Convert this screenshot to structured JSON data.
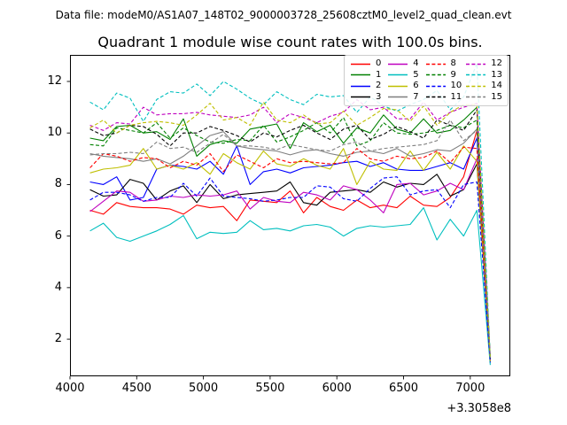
{
  "figure": {
    "header_text": "Data file: modeM0/AS1A07_148T02_9000003728_25608cztM0_level2_quad_clean.evt",
    "title": "Quadrant 1 module wise count rates with 100.0s bins."
  },
  "chart_data": {
    "type": "line",
    "title": "Quadrant 1 module wise count rates with 100.0s bins.",
    "xlabel": "",
    "ylabel": "",
    "grid": false,
    "legend": {
      "position": "upper right",
      "columns": 4
    },
    "x_axis": {
      "ticks": [
        4000,
        4500,
        5000,
        5500,
        6000,
        6500,
        7000
      ],
      "offset_label": "+3.3058e8",
      "lim": [
        4000,
        7300
      ]
    },
    "y_axis": {
      "ticks": [
        2,
        4,
        6,
        8,
        10,
        12
      ],
      "lim": [
        0.56,
        13.03
      ]
    },
    "x": [
      4150,
      4250,
      4350,
      4450,
      4550,
      4650,
      4750,
      4850,
      4950,
      5050,
      5150,
      5250,
      5350,
      5450,
      5550,
      5650,
      5750,
      5850,
      5950,
      6050,
      6150,
      6250,
      6350,
      6450,
      6550,
      6650,
      6750,
      6850,
      6950,
      7050,
      7150
    ],
    "series": [
      {
        "name": "0",
        "color": "#ff0000",
        "style": "solid",
        "values": [
          7.0,
          6.85,
          7.3,
          7.15,
          7.1,
          7.1,
          7.05,
          6.85,
          7.2,
          7.1,
          7.15,
          6.6,
          7.4,
          7.35,
          7.3,
          7.75,
          6.9,
          7.5,
          7.15,
          7.0,
          7.4,
          7.1,
          7.2,
          7.1,
          7.55,
          7.2,
          7.15,
          7.5,
          8.3,
          10.1,
          1.1
        ]
      },
      {
        "name": "1",
        "color": "#008000",
        "style": "solid",
        "values": [
          9.8,
          9.7,
          10.25,
          10.3,
          10.0,
          10.05,
          9.75,
          10.55,
          9.1,
          9.55,
          9.7,
          9.6,
          10.15,
          10.25,
          10.35,
          9.4,
          10.4,
          10.05,
          10.3,
          9.6,
          10.2,
          10.0,
          10.7,
          10.15,
          10.0,
          10.55,
          10.0,
          10.1,
          10.5,
          11.0,
          1.2
        ]
      },
      {
        "name": "2",
        "color": "#0000ff",
        "style": "solid",
        "values": [
          8.1,
          8.0,
          8.3,
          7.4,
          7.5,
          8.6,
          8.75,
          8.7,
          8.6,
          8.9,
          8.4,
          9.5,
          8.0,
          8.5,
          8.6,
          8.45,
          8.65,
          8.7,
          8.75,
          8.85,
          8.9,
          8.7,
          8.85,
          8.6,
          8.55,
          8.55,
          8.7,
          8.85,
          8.6,
          9.8,
          1.15
        ]
      },
      {
        "name": "3",
        "color": "#000000",
        "style": "solid",
        "values": [
          7.8,
          7.55,
          7.6,
          8.2,
          8.05,
          7.4,
          7.75,
          7.95,
          7.3,
          8.0,
          7.45,
          7.6,
          7.65,
          7.7,
          7.75,
          8.1,
          7.3,
          7.2,
          7.7,
          7.75,
          7.8,
          7.7,
          8.1,
          7.9,
          8.05,
          8.0,
          8.4,
          7.55,
          7.8,
          8.8,
          1.1
        ]
      },
      {
        "name": "4",
        "color": "#bf00bf",
        "style": "solid",
        "values": [
          6.95,
          7.35,
          7.75,
          7.7,
          7.35,
          7.4,
          7.55,
          7.5,
          7.6,
          7.55,
          7.6,
          7.75,
          7.05,
          7.5,
          7.35,
          7.3,
          7.7,
          7.6,
          7.4,
          7.95,
          7.8,
          7.4,
          6.9,
          8.0,
          8.05,
          7.6,
          7.75,
          8.05,
          7.8,
          9.0,
          1.1
        ]
      },
      {
        "name": "5",
        "color": "#00bfbf",
        "style": "solid",
        "values": [
          6.2,
          6.5,
          5.95,
          5.8,
          6.0,
          6.2,
          6.45,
          6.8,
          5.9,
          6.15,
          6.1,
          6.15,
          6.6,
          6.25,
          6.3,
          6.2,
          6.4,
          6.45,
          6.35,
          6.0,
          6.3,
          6.4,
          6.35,
          6.4,
          6.45,
          7.1,
          5.85,
          6.65,
          6.0,
          7.0,
          1.0
        ]
      },
      {
        "name": "6",
        "color": "#bfbf00",
        "style": "solid",
        "values": [
          8.45,
          8.6,
          8.65,
          8.75,
          9.4,
          8.6,
          8.75,
          8.6,
          8.85,
          8.4,
          9.2,
          8.85,
          8.6,
          9.3,
          8.8,
          8.7,
          9.0,
          8.75,
          8.6,
          9.4,
          8.0,
          8.9,
          8.6,
          8.55,
          9.3,
          8.55,
          9.25,
          8.6,
          9.5,
          8.9,
          1.15
        ]
      },
      {
        "name": "7",
        "color": "#7f7f7f",
        "style": "solid",
        "values": [
          9.2,
          9.1,
          9.05,
          9.0,
          8.9,
          9.0,
          8.8,
          9.1,
          9.5,
          9.9,
          10.05,
          9.5,
          9.4,
          9.35,
          9.3,
          9.15,
          9.3,
          9.35,
          9.2,
          9.1,
          9.25,
          9.3,
          9.2,
          9.4,
          9.1,
          9.2,
          9.35,
          9.3,
          9.6,
          10.15,
          1.2
        ]
      },
      {
        "name": "8",
        "color": "#ff0000",
        "style": "dashed",
        "values": [
          8.65,
          9.2,
          9.1,
          8.9,
          9.05,
          9.0,
          8.65,
          8.9,
          8.75,
          9.2,
          8.5,
          9.15,
          8.9,
          8.65,
          9.0,
          8.85,
          8.9,
          8.85,
          8.8,
          8.85,
          9.4,
          9.0,
          8.9,
          9.1,
          9.0,
          9.05,
          9.3,
          8.85,
          9.45,
          9.4,
          1.2
        ]
      },
      {
        "name": "9",
        "color": "#008000",
        "style": "dashed",
        "values": [
          9.55,
          9.5,
          10.2,
          10.1,
          10.0,
          10.4,
          9.8,
          10.2,
          9.9,
          9.65,
          9.6,
          9.75,
          9.7,
          10.3,
          9.65,
          9.85,
          10.1,
          10.4,
          10.0,
          10.6,
          9.5,
          9.7,
          10.4,
          10.0,
          9.95,
          10.0,
          10.1,
          10.3,
          10.2,
          10.5,
          1.25
        ]
      },
      {
        "name": "10",
        "color": "#0000ff",
        "style": "dashed",
        "values": [
          7.4,
          7.7,
          7.7,
          7.6,
          7.35,
          7.5,
          7.5,
          8.05,
          7.55,
          8.25,
          7.55,
          7.5,
          7.45,
          7.35,
          7.4,
          7.5,
          7.5,
          7.95,
          7.9,
          7.45,
          7.35,
          7.85,
          8.25,
          8.3,
          7.6,
          7.75,
          7.8,
          7.1,
          8.0,
          8.1,
          1.1
        ]
      },
      {
        "name": "11",
        "color": "#000000",
        "style": "dashed",
        "values": [
          10.15,
          9.9,
          10.0,
          10.3,
          10.25,
          9.95,
          9.5,
          10.0,
          10.0,
          10.25,
          10.1,
          9.9,
          9.65,
          10.0,
          9.85,
          10.1,
          10.3,
          10.0,
          9.75,
          10.15,
          10.3,
          9.75,
          9.95,
          10.25,
          10.05,
          9.8,
          10.5,
          10.3,
          10.1,
          10.9,
          1.25
        ]
      },
      {
        "name": "12",
        "color": "#bf00bf",
        "style": "dashed",
        "values": [
          10.3,
          10.1,
          10.4,
          10.35,
          11.0,
          10.7,
          10.75,
          10.75,
          10.8,
          10.7,
          10.65,
          10.6,
          10.7,
          11.0,
          10.4,
          10.75,
          10.6,
          10.4,
          10.65,
          10.8,
          11.3,
          10.9,
          11.0,
          10.55,
          10.55,
          11.2,
          10.5,
          10.8,
          11.0,
          11.15,
          1.3
        ]
      },
      {
        "name": "13",
        "color": "#00bfbf",
        "style": "dashed",
        "values": [
          11.2,
          10.9,
          11.55,
          11.35,
          10.45,
          11.3,
          11.6,
          11.55,
          11.9,
          11.45,
          12.0,
          11.7,
          11.35,
          11.1,
          11.6,
          11.3,
          11.1,
          11.5,
          11.4,
          11.45,
          10.8,
          11.4,
          11.05,
          10.85,
          11.1,
          11.3,
          11.65,
          10.9,
          11.4,
          12.7,
          1.3
        ]
      },
      {
        "name": "14",
        "color": "#bfbf00",
        "style": "dashed",
        "values": [
          10.2,
          10.5,
          10.0,
          10.3,
          10.4,
          10.45,
          10.4,
          10.3,
          10.7,
          11.15,
          10.5,
          10.6,
          10.3,
          11.2,
          10.5,
          10.4,
          10.7,
          10.35,
          10.4,
          10.85,
          10.3,
          10.6,
          10.95,
          10.9,
          10.45,
          11.05,
          10.3,
          10.8,
          11.1,
          11.1,
          1.25
        ]
      },
      {
        "name": "15",
        "color": "#7f7f7f",
        "style": "dashed",
        "values": [
          9.15,
          9.2,
          9.2,
          9.25,
          9.2,
          9.65,
          9.4,
          9.45,
          9.25,
          9.6,
          9.95,
          9.5,
          9.5,
          9.45,
          9.35,
          9.55,
          9.45,
          9.35,
          9.3,
          9.55,
          9.65,
          9.3,
          9.4,
          9.45,
          9.5,
          9.55,
          9.7,
          10.5,
          9.7,
          10.1,
          1.3
        ]
      }
    ]
  }
}
